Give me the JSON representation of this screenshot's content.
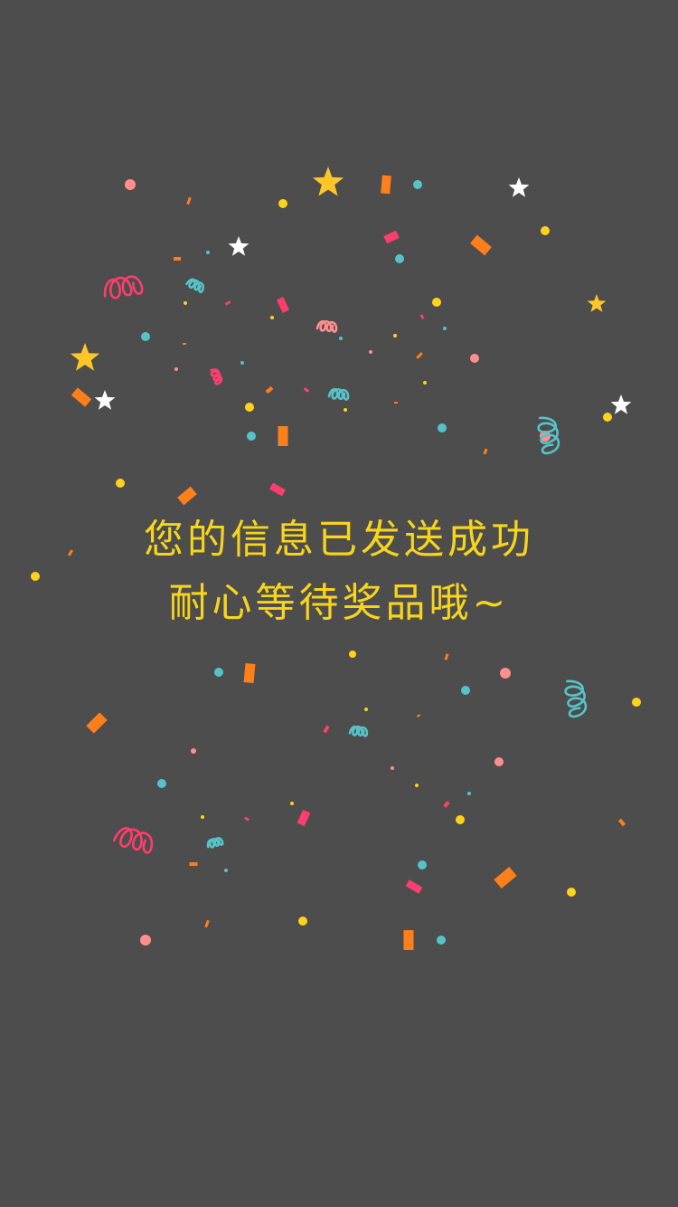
{
  "message": {
    "line1": "您的信息已发送成功",
    "line2": "耐心等待奖品哦~"
  },
  "colors": {
    "background": "#4d4d4d",
    "text": "#f7d51d",
    "pink": "#ff8f8f",
    "red": "#ff3d6e",
    "cyan": "#55c4c9",
    "yellow": "#ffd31a",
    "orange": "#ff7f1a",
    "star_gold": "#ffc629",
    "white": "#ffffff"
  },
  "decoration": {
    "type": "confetti",
    "icons": [
      "dot",
      "rect-confetti",
      "squiggle",
      "star"
    ]
  }
}
